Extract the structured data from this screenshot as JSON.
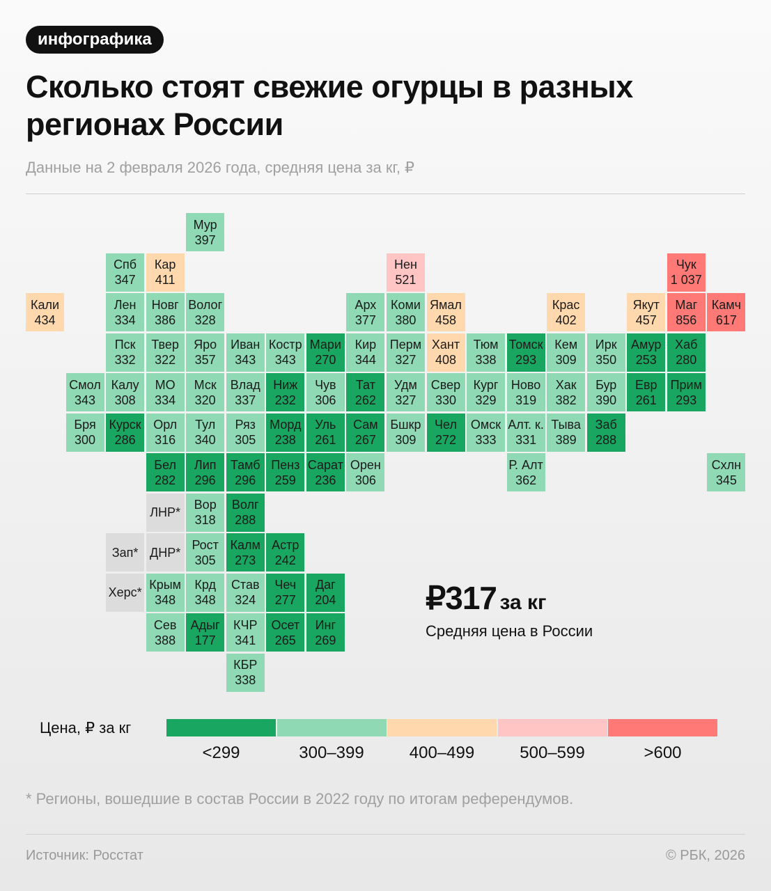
{
  "badge": "инфографика",
  "title": "Сколько стоят свежие огурцы в разных регионах России",
  "subtitle": "Данные на 2 февраля 2026 года, средняя цена за кг, ₽",
  "regions": [
    {
      "name": "Мур",
      "price": "397"
    },
    {
      "name": "Спб",
      "price": "347"
    },
    {
      "name": "Кар",
      "price": "411"
    },
    {
      "name": "Нен",
      "price": "521"
    },
    {
      "name": "Чук",
      "price": "1 037"
    },
    {
      "name": "Кали",
      "price": "434"
    },
    {
      "name": "Лен",
      "price": "334"
    },
    {
      "name": "Новг",
      "price": "386"
    },
    {
      "name": "Волог",
      "price": "328"
    },
    {
      "name": "Арх",
      "price": "377"
    },
    {
      "name": "Коми",
      "price": "380"
    },
    {
      "name": "Ямал",
      "price": "458"
    },
    {
      "name": "Крас",
      "price": "402"
    },
    {
      "name": "Якут",
      "price": "457"
    },
    {
      "name": "Маг",
      "price": "856"
    },
    {
      "name": "Камч",
      "price": "617"
    },
    {
      "name": "Пск",
      "price": "332"
    },
    {
      "name": "Твер",
      "price": "322"
    },
    {
      "name": "Яро",
      "price": "357"
    },
    {
      "name": "Иван",
      "price": "343"
    },
    {
      "name": "Костр",
      "price": "343"
    },
    {
      "name": "Мари",
      "price": "270"
    },
    {
      "name": "Кир",
      "price": "344"
    },
    {
      "name": "Перм",
      "price": "327"
    },
    {
      "name": "Хант",
      "price": "408"
    },
    {
      "name": "Тюм",
      "price": "338"
    },
    {
      "name": "Томск",
      "price": "293"
    },
    {
      "name": "Кем",
      "price": "309"
    },
    {
      "name": "Ирк",
      "price": "350"
    },
    {
      "name": "Амур",
      "price": "253"
    },
    {
      "name": "Хаб",
      "price": "280"
    },
    {
      "name": "Смол",
      "price": "343"
    },
    {
      "name": "Калу",
      "price": "308"
    },
    {
      "name": "МО",
      "price": "334"
    },
    {
      "name": "Мск",
      "price": "320"
    },
    {
      "name": "Влад",
      "price": "337"
    },
    {
      "name": "Ниж",
      "price": "232"
    },
    {
      "name": "Чув",
      "price": "306"
    },
    {
      "name": "Тат",
      "price": "262"
    },
    {
      "name": "Удм",
      "price": "327"
    },
    {
      "name": "Свер",
      "price": "330"
    },
    {
      "name": "Кург",
      "price": "329"
    },
    {
      "name": "Ново",
      "price": "319"
    },
    {
      "name": "Хак",
      "price": "382"
    },
    {
      "name": "Бур",
      "price": "390"
    },
    {
      "name": "Евр",
      "price": "261"
    },
    {
      "name": "Прим",
      "price": "293"
    },
    {
      "name": "Бря",
      "price": "300"
    },
    {
      "name": "Курск",
      "price": "286"
    },
    {
      "name": "Орл",
      "price": "316"
    },
    {
      "name": "Тул",
      "price": "340"
    },
    {
      "name": "Ряз",
      "price": "305"
    },
    {
      "name": "Морд",
      "price": "238"
    },
    {
      "name": "Уль",
      "price": "261"
    },
    {
      "name": "Сам",
      "price": "267"
    },
    {
      "name": "Бшкр",
      "price": "309"
    },
    {
      "name": "Чел",
      "price": "272"
    },
    {
      "name": "Омск",
      "price": "333"
    },
    {
      "name": "Алт. к.",
      "price": "331"
    },
    {
      "name": "Тыва",
      "price": "389"
    },
    {
      "name": "Заб",
      "price": "288"
    },
    {
      "name": "Бел",
      "price": "282"
    },
    {
      "name": "Лип",
      "price": "296"
    },
    {
      "name": "Тамб",
      "price": "296"
    },
    {
      "name": "Пенз",
      "price": "259"
    },
    {
      "name": "Сарат",
      "price": "236"
    },
    {
      "name": "Орен",
      "price": "306"
    },
    {
      "name": "Р. Алт",
      "price": "362"
    },
    {
      "name": "Схлн",
      "price": "345"
    },
    {
      "name": "ЛНР*",
      "price": null
    },
    {
      "name": "Вор",
      "price": "318"
    },
    {
      "name": "Волг",
      "price": "288"
    },
    {
      "name": "Зап*",
      "price": null
    },
    {
      "name": "ДНР*",
      "price": null
    },
    {
      "name": "Рост",
      "price": "305"
    },
    {
      "name": "Калм",
      "price": "273"
    },
    {
      "name": "Астр",
      "price": "242"
    },
    {
      "name": "Херс*",
      "price": null
    },
    {
      "name": "Крым",
      "price": "348"
    },
    {
      "name": "Крд",
      "price": "348"
    },
    {
      "name": "Став",
      "price": "324"
    },
    {
      "name": "Чеч",
      "price": "277"
    },
    {
      "name": "Даг",
      "price": "204"
    },
    {
      "name": "Сев",
      "price": "388"
    },
    {
      "name": "Адыг",
      "price": "177"
    },
    {
      "name": "КЧР",
      "price": "341"
    },
    {
      "name": "Осет",
      "price": "265"
    },
    {
      "name": "Инг",
      "price": "269"
    },
    {
      "name": "КБР",
      "price": "338"
    }
  ],
  "no_data_color": "#dcdcdc",
  "average": {
    "value": "₽317",
    "unit": "за кг",
    "label": "Средняя цена в России"
  },
  "legend": {
    "title": "Цена, ₽ за кг",
    "items": [
      {
        "label": "<299",
        "max": 299,
        "color": "#19a660"
      },
      {
        "label": "300–399",
        "max": 399,
        "color": "#8fdab5"
      },
      {
        "label": "400–499",
        "max": 499,
        "color": "#ffd8ad"
      },
      {
        "label": "500–599",
        "max": 599,
        "color": "#ffc5c5"
      },
      {
        "label": ">600",
        "max": 100000,
        "color": "#ff7a76"
      }
    ]
  },
  "note": "* Регионы, вошедшие в состав России в 2022 году по итогам референдумов.",
  "source": "Источник: Росстат",
  "copyright": "© РБК, 2026"
}
